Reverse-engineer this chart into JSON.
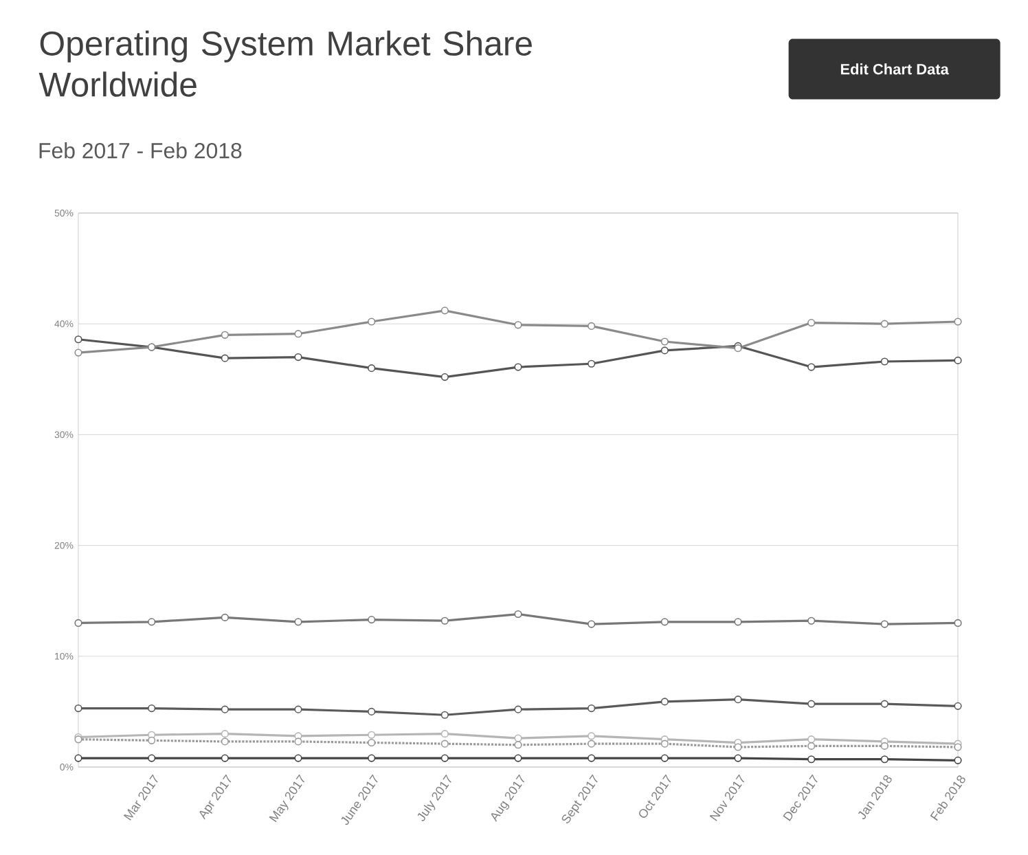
{
  "chart_data": {
    "type": "line",
    "title": "Operating System Market Share Worldwide",
    "subtitle": "Feb 2017 - Feb 2018",
    "annotations": [
      "Edit Chart Data"
    ],
    "categories": [
      null,
      "Mar 2017",
      "Apr 2017",
      "May 2017",
      "June 2017",
      "July 2017",
      "Aug 2017",
      "Sept 2017",
      "Oct 2017",
      "Nov 2017",
      "Dec 2017",
      "Jan 2018",
      "Feb 2018"
    ],
    "series": [
      {
        "color": "#555555",
        "values": [
          38.6,
          37.9,
          36.9,
          37.0,
          36.0,
          35.2,
          36.1,
          36.4,
          37.6,
          38.0,
          36.1,
          36.6,
          36.7
        ]
      },
      {
        "color": "#8a8a8a",
        "values": [
          37.4,
          37.9,
          39.0,
          39.1,
          40.2,
          41.2,
          39.9,
          39.8,
          38.4,
          37.8,
          40.1,
          40.0,
          40.2
        ]
      },
      {
        "color": "#777777",
        "values": [
          13.0,
          13.1,
          13.5,
          13.1,
          13.3,
          13.2,
          13.8,
          12.9,
          13.1,
          13.1,
          13.2,
          12.9,
          13.0
        ]
      },
      {
        "color": "#5a5a5a",
        "values": [
          5.3,
          5.3,
          5.2,
          5.2,
          5.0,
          4.7,
          5.2,
          5.3,
          5.9,
          6.1,
          5.7,
          5.7,
          5.5
        ]
      },
      {
        "color": "#b5b5b5",
        "values": [
          2.7,
          2.9,
          3.0,
          2.8,
          2.9,
          3.0,
          2.6,
          2.8,
          2.5,
          2.2,
          2.5,
          2.3,
          2.1
        ]
      },
      {
        "color": "#999999",
        "line_style": "dotted",
        "values": [
          2.5,
          2.4,
          2.3,
          2.3,
          2.2,
          2.1,
          2.0,
          2.1,
          2.1,
          1.8,
          1.9,
          1.9,
          1.8
        ]
      },
      {
        "color": "#444444",
        "values": [
          0.8,
          0.8,
          0.8,
          0.8,
          0.8,
          0.8,
          0.8,
          0.8,
          0.8,
          0.8,
          0.7,
          0.7,
          0.6
        ]
      }
    ],
    "ylim": [
      0,
      50
    ],
    "yticks": [
      {
        "value": 0,
        "label": "0%"
      },
      {
        "value": 10,
        "label": "10%"
      },
      {
        "value": 20,
        "label": "20%"
      },
      {
        "value": 30,
        "label": "30%"
      },
      {
        "value": 40,
        "label": "40%"
      },
      {
        "value": 50,
        "label": "50%"
      }
    ],
    "grid": "y",
    "marker": "circle"
  }
}
